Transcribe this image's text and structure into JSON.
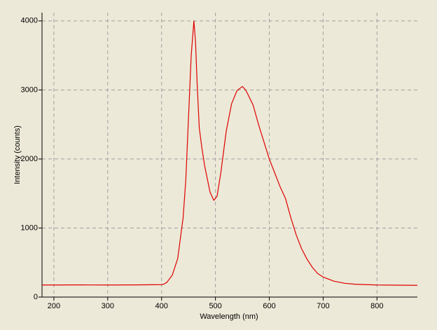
{
  "chart_data": {
    "type": "line",
    "x_label": "Wavelength (nm)",
    "y_label": "Intensity (counts)",
    "x": [
      178,
      200,
      250,
      300,
      350,
      400,
      405,
      410,
      420,
      430,
      440,
      445,
      450,
      455,
      460,
      463,
      466,
      470,
      475,
      480,
      490,
      497,
      503,
      510,
      520,
      530,
      540,
      550,
      556,
      560,
      570,
      580,
      590,
      600,
      610,
      620,
      630,
      640,
      650,
      660,
      670,
      680,
      690,
      700,
      720,
      740,
      760,
      800,
      875
    ],
    "values": [
      175,
      175,
      176,
      175,
      176,
      180,
      190,
      215,
      320,
      560,
      1150,
      1700,
      2600,
      3500,
      4000,
      3700,
      3100,
      2450,
      2150,
      1900,
      1520,
      1400,
      1460,
      1800,
      2400,
      2800,
      2990,
      3050,
      3000,
      2940,
      2780,
      2500,
      2250,
      2000,
      1800,
      1600,
      1430,
      1150,
      900,
      700,
      550,
      430,
      340,
      290,
      230,
      200,
      185,
      175,
      170
    ],
    "color": "#e00000",
    "xlim": [
      178,
      875
    ],
    "ylim": [
      0,
      4120
    ],
    "xticks": [
      200,
      300,
      400,
      500,
      600,
      700,
      800
    ],
    "yticks": [
      0,
      1000,
      2000,
      3000,
      4000
    ],
    "grid": true
  }
}
